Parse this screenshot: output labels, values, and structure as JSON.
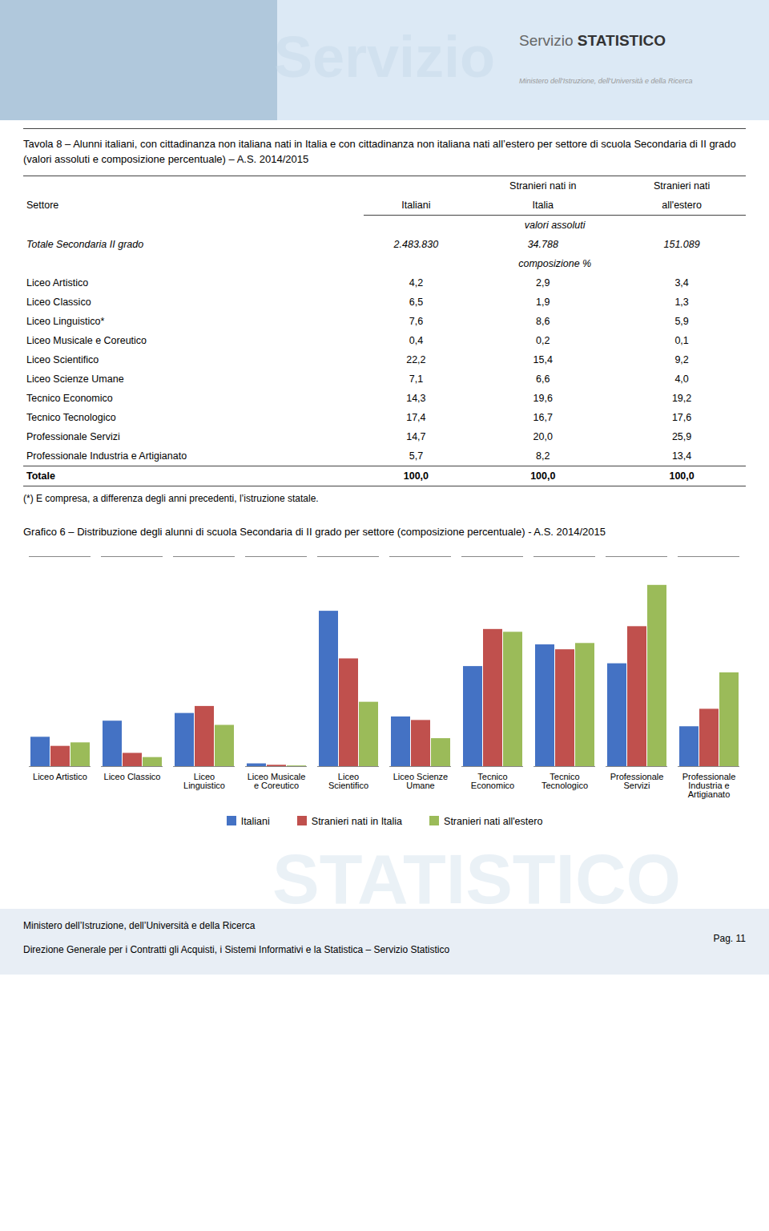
{
  "chart_data": [
    {
      "type": "table",
      "header": [
        "Servizio ",
        "STATISTICO",
        "Ministero dell'Istruzione, dell'Università e della Ricerca"
      ],
      "watermarks": [
        "Servizio",
        "STATISTICO"
      ],
      "title": "Tavola 8 – Alunni italiani, con cittadinanza non italiana nati in Italia e con cittadinanza non italiana nati all’estero per settore di scuola Secondaria di II grado (valori assoluti e composizione percentuale) – A.S. 2014/2015",
      "columns": [
        {
          "label": "Settore"
        },
        {
          "label": "Italiani"
        },
        {
          "group": "Stranieri nati in",
          "label": "Italia"
        },
        {
          "group": "Stranieri  nati",
          "label": "all'estero"
        }
      ],
      "sections": [
        {
          "label": "valori assoluti",
          "rows": [
            [
              "Totale Secondaria II grado",
              "2.483.830",
              "34.788",
              "151.089"
            ]
          ]
        },
        {
          "label": "composizione %",
          "rows": [
            [
              "Liceo  Artistico",
              "4,2",
              "2,9",
              "3,4"
            ],
            [
              "Liceo  Classico",
              "6,5",
              "1,9",
              "1,3"
            ],
            [
              "Liceo  Linguistico*",
              "7,6",
              "8,6",
              "5,9"
            ],
            [
              "Liceo  Musicale e Coreutico",
              "0,4",
              "0,2",
              "0,1"
            ],
            [
              "Liceo  Scientifico",
              "22,2",
              "15,4",
              "9,2"
            ],
            [
              "Liceo  Scienze Umane",
              "7,1",
              "6,6",
              "4,0"
            ],
            [
              "Tecnico Economico",
              "14,3",
              "19,6",
              "19,2"
            ],
            [
              "Tecnico Tecnologico",
              "17,4",
              "16,7",
              "17,6"
            ],
            [
              "Professionale Servizi",
              "14,7",
              "20,0",
              "25,9"
            ],
            [
              "Professionale Industria e Artigianato",
              "5,7",
              "8,2",
              "13,4"
            ]
          ],
          "total": [
            "Totale",
            "100,0",
            "100,0",
            "100,0"
          ]
        }
      ],
      "footnote": "(*) E compresa, a differenza degli anni precedenti, l’istruzione statale.",
      "footer": [
        "Ministero dell’Istruzione, dell’Università e della Ricerca",
        "Direzione Generale  per i Contratti gli Acquisti, i Sistemi Informativi e la Statistica – Servizio Statistico",
        "Pag. 11"
      ]
    },
    {
      "type": "bar",
      "title": "Grafico 6 – Distribuzione degli alunni di scuola Secondaria di II grado per settore (composizione percentuale) - A.S. 2014/2015",
      "categories": [
        "Liceo Artistico",
        "Liceo Classico",
        "Liceo\nLinguistico",
        "Liceo Musicale\ne Coreutico",
        "Liceo\nScientifico",
        "Liceo Scienze\nUmane",
        "Tecnico\nEconomico",
        "Tecnico\nTecnologico",
        "Professionale\nServizi",
        "Professionale\nIndustria e\nArtigianato"
      ],
      "series": [
        {
          "name": "Italiani",
          "color": "#4472C4",
          "values": [
            4.2,
            6.5,
            7.6,
            0.4,
            22.2,
            7.1,
            14.3,
            17.4,
            14.7,
            5.7
          ]
        },
        {
          "name": "Stranieri nati in Italia",
          "color": "#C0504D",
          "values": [
            2.9,
            1.9,
            8.6,
            0.2,
            15.4,
            6.6,
            19.6,
            16.7,
            20.0,
            8.2
          ]
        },
        {
          "name": "Stranieri nati all'estero",
          "color": "#9BBB59",
          "values": [
            3.4,
            1.3,
            5.9,
            0.1,
            9.2,
            4.0,
            19.2,
            17.6,
            25.9,
            13.4
          ]
        }
      ],
      "ylim": [
        0,
        30
      ],
      "tick_labels": "x",
      "legend": "bottom"
    }
  ]
}
